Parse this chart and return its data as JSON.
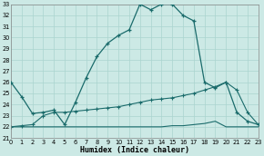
{
  "xlabel": "Humidex (Indice chaleur)",
  "background_color": "#cce9e5",
  "grid_color": "#aad4cf",
  "line_color": "#1a6b6b",
  "xlim": [
    0,
    23
  ],
  "ylim": [
    21,
    33
  ],
  "yticks": [
    21,
    22,
    23,
    24,
    25,
    26,
    27,
    28,
    29,
    30,
    31,
    32,
    33
  ],
  "xticks": [
    0,
    1,
    2,
    3,
    4,
    5,
    6,
    7,
    8,
    9,
    10,
    11,
    12,
    13,
    14,
    15,
    16,
    17,
    18,
    19,
    20,
    21,
    22,
    23
  ],
  "line1_x": [
    0,
    1,
    2,
    3,
    4,
    5,
    6,
    7,
    8,
    9,
    10,
    11,
    12,
    13,
    14,
    15,
    16,
    17,
    18,
    19,
    20,
    21,
    22,
    23
  ],
  "line1_y": [
    26.0,
    24.7,
    23.2,
    23.3,
    23.5,
    22.2,
    24.2,
    26.4,
    28.3,
    29.5,
    30.2,
    30.7,
    33.0,
    32.5,
    33.0,
    33.0,
    32.0,
    31.5,
    26.0,
    25.5,
    26.0,
    23.3,
    22.5,
    22.2
  ],
  "line2_x": [
    0,
    1,
    2,
    3,
    4,
    5,
    6,
    7,
    8,
    9,
    10,
    11,
    12,
    13,
    14,
    15,
    16,
    17,
    18,
    19,
    20,
    21,
    22,
    23
  ],
  "line2_y": [
    22.0,
    22.1,
    22.2,
    23.0,
    23.3,
    23.3,
    23.4,
    23.5,
    23.6,
    23.7,
    23.8,
    24.0,
    24.2,
    24.4,
    24.5,
    24.6,
    24.8,
    25.0,
    25.3,
    25.6,
    26.0,
    25.3,
    23.3,
    22.2
  ],
  "line3_x": [
    0,
    1,
    2,
    3,
    4,
    5,
    6,
    7,
    8,
    9,
    10,
    11,
    12,
    13,
    14,
    15,
    16,
    17,
    18,
    19,
    20,
    21,
    22,
    23
  ],
  "line3_y": [
    22.0,
    22.0,
    22.0,
    22.0,
    22.0,
    22.0,
    22.0,
    22.0,
    22.0,
    22.0,
    22.0,
    22.0,
    22.0,
    22.0,
    22.0,
    22.1,
    22.1,
    22.2,
    22.3,
    22.5,
    22.0,
    22.0,
    22.0,
    22.0
  ]
}
